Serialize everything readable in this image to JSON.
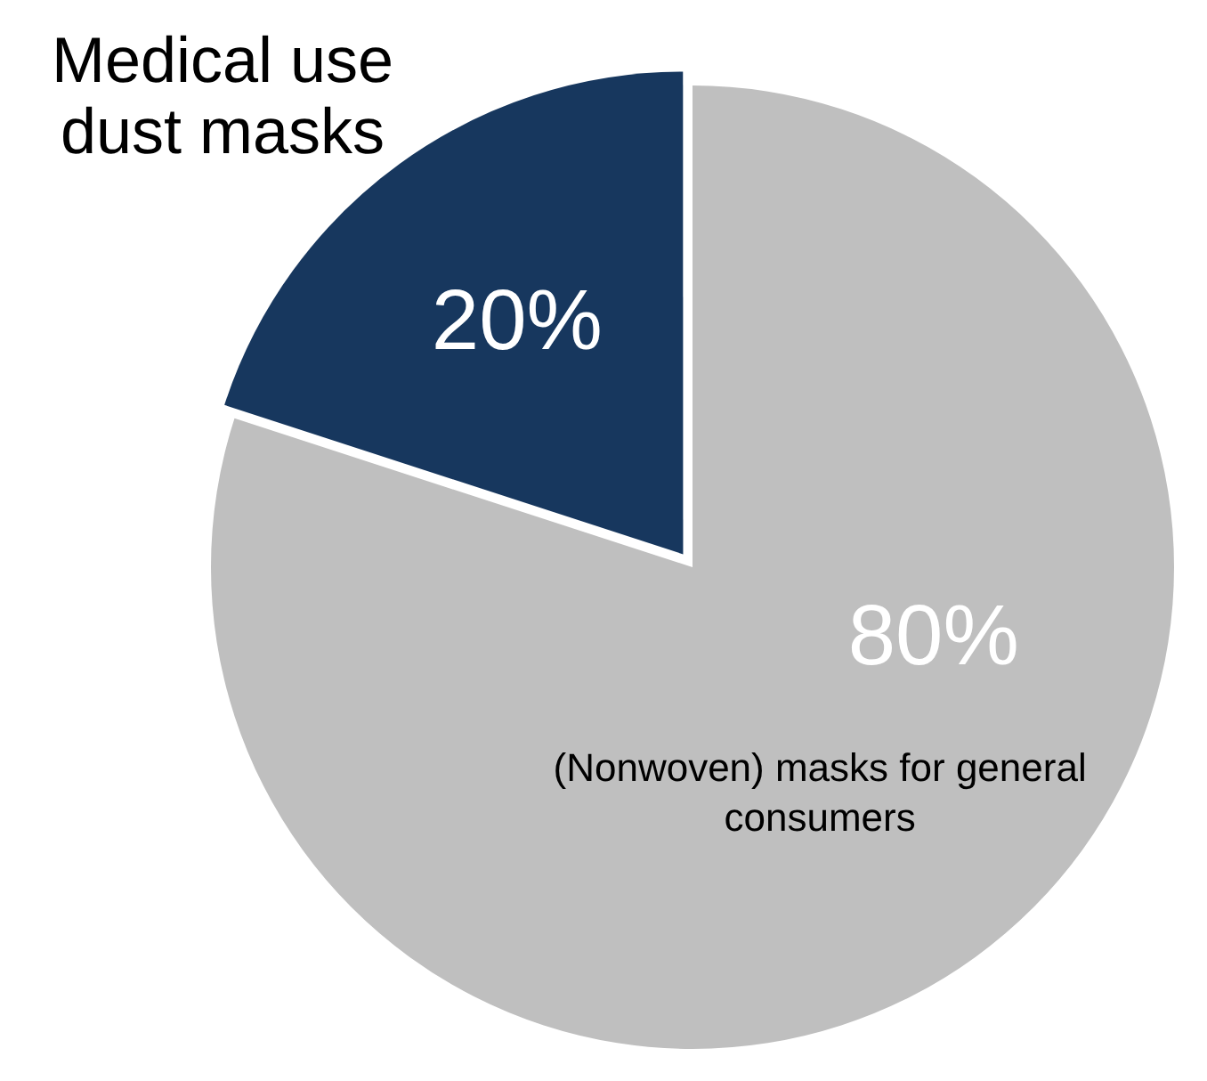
{
  "chart_data": {
    "type": "pie",
    "categories": [
      "(Nonwoven) masks for general consumers",
      "Medical use dust masks"
    ],
    "values": [
      80,
      20
    ],
    "colors": [
      "#bfbfbf",
      "#17375e"
    ],
    "value_labels": [
      "80%",
      "20%"
    ]
  }
}
